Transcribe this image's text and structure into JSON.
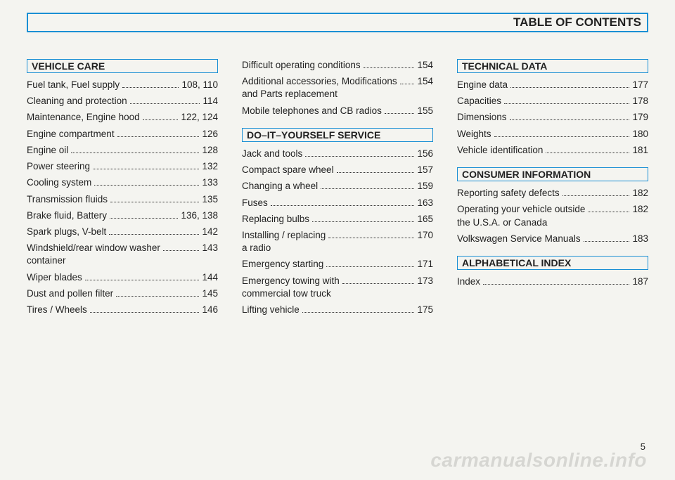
{
  "title": "TABLE OF CONTENTS",
  "columns": [
    {
      "sections": [
        {
          "heading": "VEHICLE CARE",
          "entries": [
            {
              "label": "Fuel tank, Fuel supply",
              "page": "108, 110"
            },
            {
              "label": "Cleaning and protection",
              "page": "114"
            },
            {
              "label": "Maintenance, Engine hood",
              "page": "122, 124"
            },
            {
              "label": "Engine compartment",
              "page": "126"
            },
            {
              "label": "Engine oil",
              "page": "128"
            },
            {
              "label": "Power steering",
              "page": "132"
            },
            {
              "label": "Cooling system",
              "page": "133"
            },
            {
              "label": "Transmission fluids",
              "page": "135"
            },
            {
              "label": "Brake fluid, Battery",
              "page": "136, 138"
            },
            {
              "label": "Spark plugs, V-belt",
              "page": "142"
            },
            {
              "label": "Windshield/rear window washer\ncontainer",
              "page": "143"
            },
            {
              "label": "Wiper blades",
              "page": "144"
            },
            {
              "label": "Dust and pollen filter",
              "page": "145"
            },
            {
              "label": "Tires / Wheels",
              "page": "146"
            }
          ]
        }
      ]
    },
    {
      "sections": [
        {
          "heading": null,
          "entries": [
            {
              "label": "Difficult operating conditions",
              "page": "154"
            },
            {
              "label": "Additional accessories, Modifications\nand Parts replacement",
              "page": "154"
            },
            {
              "label": "Mobile telephones and CB radios",
              "page": "155"
            }
          ]
        },
        {
          "heading": "DO–IT–YOURSELF SERVICE",
          "entries": [
            {
              "label": "Jack and tools",
              "page": "156"
            },
            {
              "label": "Compact spare wheel",
              "page": "157"
            },
            {
              "label": "Changing a wheel",
              "page": "159"
            },
            {
              "label": "Fuses",
              "page": "163"
            },
            {
              "label": "Replacing bulbs",
              "page": "165"
            },
            {
              "label": "Installing / replacing\na radio",
              "page": "170"
            },
            {
              "label": "Emergency starting",
              "page": "171"
            },
            {
              "label": "Emergency towing with\ncommercial tow truck",
              "page": "173"
            },
            {
              "label": "Lifting vehicle",
              "page": "175"
            }
          ]
        }
      ]
    },
    {
      "sections": [
        {
          "heading": "TECHNICAL DATA",
          "entries": [
            {
              "label": "Engine data",
              "page": "177"
            },
            {
              "label": "Capacities",
              "page": "178"
            },
            {
              "label": "Dimensions",
              "page": "179"
            },
            {
              "label": "Weights",
              "page": "180"
            },
            {
              "label": "Vehicle identification",
              "page": "181"
            }
          ]
        },
        {
          "heading": "CONSUMER INFORMATION",
          "entries": [
            {
              "label": "Reporting safety defects",
              "page": "182"
            },
            {
              "label": "Operating your vehicle outside\nthe U.S.A. or Canada",
              "page": "182"
            },
            {
              "label": "Volkswagen Service Manuals",
              "page": "183"
            }
          ]
        },
        {
          "heading": "ALPHABETICAL INDEX",
          "entries": [
            {
              "label": "Index",
              "page": "187"
            }
          ]
        }
      ]
    }
  ],
  "pageNumber": "5",
  "watermark": "carmanualsonline.info"
}
